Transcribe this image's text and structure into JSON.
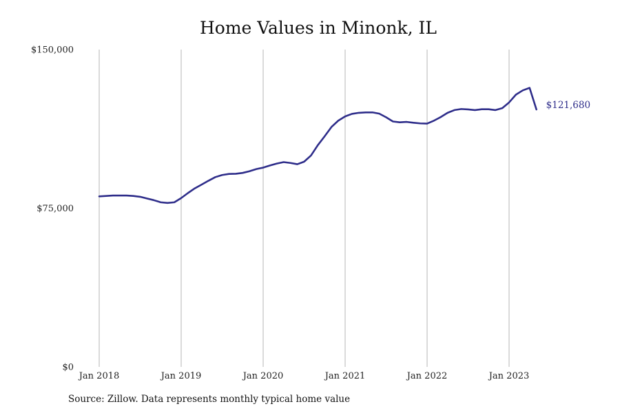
{
  "chart_data": {
    "type": "line",
    "title": "Home Values in Minonk, IL",
    "xlabel": "",
    "ylabel": "",
    "ylim": [
      0,
      150000
    ],
    "xlim": [
      "2018-01",
      "2023-05"
    ],
    "y_ticks": [
      {
        "value": 0,
        "label": "$0"
      },
      {
        "value": 75000,
        "label": "$75,000"
      },
      {
        "value": 150000,
        "label": "$150,000"
      }
    ],
    "x_ticks": [
      {
        "value": "2018-01",
        "label": "Jan 2018"
      },
      {
        "value": "2019-01",
        "label": "Jan 2019"
      },
      {
        "value": "2020-01",
        "label": "Jan 2020"
      },
      {
        "value": "2021-01",
        "label": "Jan 2021"
      },
      {
        "value": "2022-01",
        "label": "Jan 2022"
      },
      {
        "value": "2023-01",
        "label": "Jan 2023"
      }
    ],
    "grid": {
      "vertical": true,
      "horizontal": false
    },
    "line_color": "#2e2d8a",
    "grid_color": "#b5b5b5",
    "end_label": "$121,680",
    "series": [
      {
        "x": [
          "2018-01",
          "2018-02",
          "2018-03",
          "2018-04",
          "2018-05",
          "2018-06",
          "2018-07",
          "2018-08",
          "2018-09",
          "2018-10",
          "2018-11",
          "2018-12",
          "2019-01",
          "2019-02",
          "2019-03",
          "2019-04",
          "2019-05",
          "2019-06",
          "2019-07",
          "2019-08",
          "2019-09",
          "2019-10",
          "2019-11",
          "2019-12",
          "2020-01",
          "2020-02",
          "2020-03",
          "2020-04",
          "2020-05",
          "2020-06",
          "2020-07",
          "2020-08",
          "2020-09",
          "2020-10",
          "2020-11",
          "2020-12",
          "2021-01",
          "2021-02",
          "2021-03",
          "2021-04",
          "2021-05",
          "2021-06",
          "2021-07",
          "2021-08",
          "2021-09",
          "2021-10",
          "2021-11",
          "2021-12",
          "2022-01",
          "2022-02",
          "2022-03",
          "2022-04",
          "2022-05",
          "2022-06",
          "2022-07",
          "2022-08",
          "2022-09",
          "2022-10",
          "2022-11",
          "2022-12",
          "2023-01",
          "2023-02",
          "2023-03",
          "2023-04",
          "2023-05"
        ],
        "y": [
          80600,
          80800,
          81000,
          81000,
          81000,
          80800,
          80400,
          79600,
          78800,
          77800,
          77500,
          77800,
          79800,
          82200,
          84400,
          86200,
          88000,
          89700,
          90700,
          91200,
          91300,
          91700,
          92500,
          93500,
          94200,
          95200,
          96100,
          96800,
          96400,
          95800,
          97000,
          99900,
          104800,
          109000,
          113400,
          116400,
          118400,
          119600,
          120100,
          120300,
          120300,
          119700,
          118000,
          116000,
          115600,
          115800,
          115400,
          115100,
          115000,
          116400,
          118100,
          120100,
          121400,
          121900,
          121700,
          121400,
          121800,
          121800,
          121400,
          122300,
          125000,
          128700,
          130700,
          131900,
          121680
        ]
      }
    ]
  },
  "footer": {
    "source": "Source: Zillow. Data represents monthly typical home value"
  }
}
